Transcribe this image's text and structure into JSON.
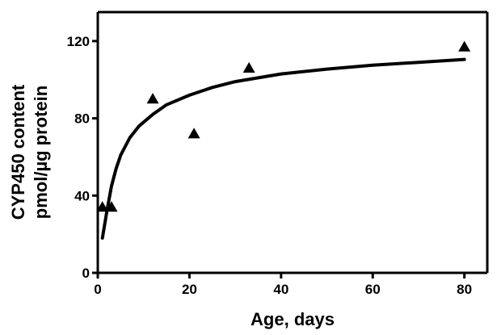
{
  "chart_data": {
    "type": "scatter",
    "xlabel": "Age, days",
    "ylabel_line1": "CYP450 content",
    "ylabel_line2": "pmol/µg protein",
    "xlim": [
      0,
      85
    ],
    "ylim": [
      0,
      135
    ],
    "x_ticks": [
      0,
      20,
      40,
      60,
      80
    ],
    "y_ticks": [
      0,
      40,
      80,
      120
    ],
    "grid": false,
    "legend": "none",
    "series": [
      {
        "kind": "points",
        "marker": "triangle",
        "x": [
          1,
          3,
          12,
          21,
          33,
          80
        ],
        "y": [
          34,
          34,
          90,
          72,
          106,
          117
        ]
      },
      {
        "kind": "fitted-curve",
        "x": [
          1,
          2,
          3,
          4,
          5,
          7,
          9,
          12,
          15,
          20,
          25,
          30,
          40,
          50,
          60,
          70,
          80
        ],
        "y": [
          18,
          32,
          45,
          54,
          61,
          70,
          76,
          82,
          87,
          92,
          96,
          99,
          103,
          105.5,
          107.5,
          109,
          110.5
        ]
      }
    ],
    "colors": {
      "marks": "#000000",
      "background": "#ffffff"
    }
  }
}
